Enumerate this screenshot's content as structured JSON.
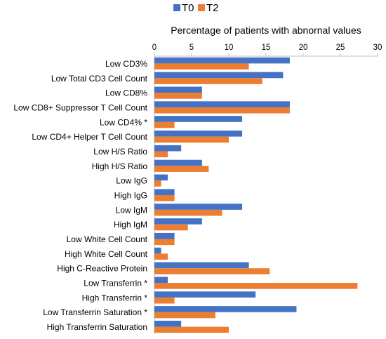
{
  "chart_data": {
    "type": "bar",
    "orientation": "horizontal",
    "xlabel": "Percentage of patients with abnornal values",
    "xlim": [
      0,
      30
    ],
    "xticks": [
      0,
      5,
      10,
      15,
      20,
      25,
      30
    ],
    "xaxis_position": "top",
    "legend_position": "top-center",
    "grid": false,
    "categories": [
      "Low CD3%",
      "Low Total CD3 Cell Count",
      "Low CD8%",
      "Low CD8+ Suppressor T Cell Count",
      "Low CD4% *",
      "Low CD4+ Helper T Cell Count",
      "Low H/S Ratio",
      "High H/S Ratio",
      "Low IgG",
      "High IgG",
      "Low IgM",
      "High IgM",
      "Low White Cell Count",
      "High White Cell Count",
      "High C-Reactive Protein",
      "Low Transferrin *",
      "High Transferrin *",
      "Low Transferrin Saturation *",
      "High Transferrin Saturation"
    ],
    "series": [
      {
        "name": "T0",
        "color": "#4472C4",
        "values": [
          18.2,
          17.3,
          6.4,
          18.2,
          11.8,
          11.8,
          3.6,
          6.4,
          1.8,
          2.7,
          11.8,
          6.4,
          2.7,
          0.9,
          12.7,
          1.8,
          13.6,
          19.1,
          3.6
        ]
      },
      {
        "name": "T2",
        "color": "#ED7D31",
        "values": [
          12.7,
          14.5,
          6.4,
          18.2,
          2.7,
          10.0,
          1.8,
          7.3,
          0.9,
          2.7,
          9.1,
          4.5,
          2.7,
          1.8,
          15.5,
          27.3,
          2.7,
          8.2,
          10.0
        ]
      }
    ]
  }
}
